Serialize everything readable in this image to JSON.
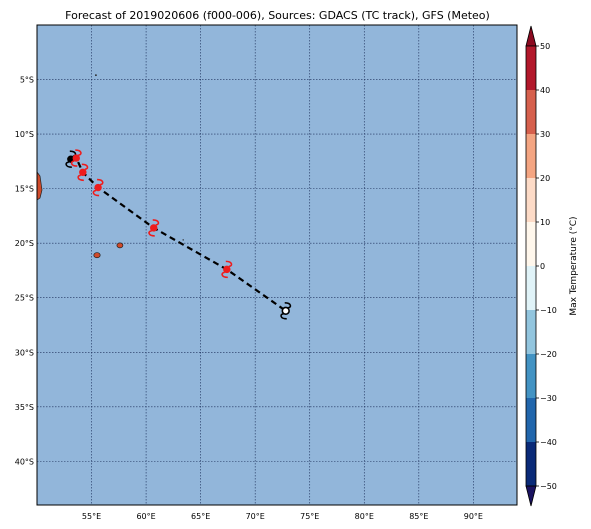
{
  "title": "Forecast of 2019020606 (f000-006), Sources: GDACS (TC track), GFS (Meteo)",
  "map": {
    "lon_range": [
      50,
      94
    ],
    "lat_range": [
      -44,
      0
    ],
    "lon_ticks": [
      {
        "value": 55,
        "label": "55°E"
      },
      {
        "value": 60,
        "label": "60°E"
      },
      {
        "value": 65,
        "label": "65°E"
      },
      {
        "value": 70,
        "label": "70°E"
      },
      {
        "value": 75,
        "label": "75°E"
      },
      {
        "value": 80,
        "label": "80°E"
      },
      {
        "value": 85,
        "label": "85°E"
      },
      {
        "value": 90,
        "label": "90°E"
      }
    ],
    "lat_ticks": [
      {
        "value": -5,
        "label": "5°S"
      },
      {
        "value": -10,
        "label": "10°S"
      },
      {
        "value": -15,
        "label": "15°S"
      },
      {
        "value": -20,
        "label": "20°S"
      },
      {
        "value": -25,
        "label": "25°S"
      },
      {
        "value": -30,
        "label": "30°S"
      },
      {
        "value": -35,
        "label": "35°S"
      },
      {
        "value": -40,
        "label": "40°S"
      }
    ],
    "ocean_color": "#92b6da",
    "grid": true
  },
  "track": {
    "points": [
      {
        "lon": 53.1,
        "lat": -12.3,
        "color": "#000000",
        "kind": "current"
      },
      {
        "lon": 53.6,
        "lat": -12.2,
        "color": "#ee1c1c",
        "kind": "cyclone"
      },
      {
        "lon": 54.2,
        "lat": -13.5,
        "color": "#ee1c1c",
        "kind": "cyclone"
      },
      {
        "lon": 55.6,
        "lat": -14.9,
        "color": "#ee1c1c",
        "kind": "cyclone"
      },
      {
        "lon": 60.7,
        "lat": -18.6,
        "color": "#ee1c1c",
        "kind": "cyclone"
      },
      {
        "lon": 67.4,
        "lat": -22.4,
        "color": "#ee1c1c",
        "kind": "cyclone"
      },
      {
        "lon": 72.8,
        "lat": -26.2,
        "color": "#000000",
        "kind": "forecast"
      }
    ]
  },
  "colorbar": {
    "label": "Max Temperature (°C)",
    "ticks": [
      50,
      40,
      30,
      20,
      10,
      0,
      -10,
      -20,
      -30,
      -40,
      -50
    ],
    "colors": [
      "#8b0a20",
      "#b2182b",
      "#d6604d",
      "#f4a582",
      "#fddbc7",
      "#fff7ec",
      "#e0f3f8",
      "#92c5de",
      "#4393c3",
      "#2166ac",
      "#0a2a78",
      "#1a1260"
    ],
    "range": [
      -50,
      50
    ]
  }
}
